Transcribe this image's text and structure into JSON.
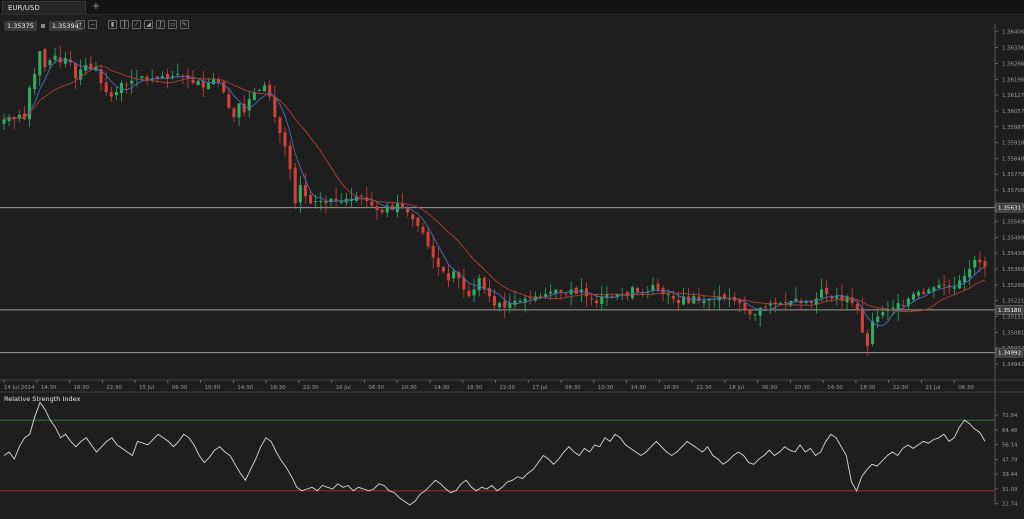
{
  "tab": {
    "symbol": "EUR/USD",
    "add_label": "+"
  },
  "quote": {
    "bid": "1.35375",
    "ask": "1.35394"
  },
  "toolbar": {
    "icons": [
      "zoom-in-icon",
      "zoom-out-icon",
      "bar-chart-icon",
      "candles-icon",
      "line-chart-icon",
      "area-chart-icon",
      "indicators-icon",
      "objects-icon",
      "draw-icon"
    ]
  },
  "colors": {
    "bg": "#1e1e1e",
    "bull": "#2fae62",
    "bear": "#d2413a",
    "ma_fast": "#4a70b8",
    "ma_slow": "#b0403a",
    "hline": "#9a9a9a",
    "rsi_line": "#d8d8d8",
    "rsi_upper": "#2f8f3a",
    "rsi_lower": "#b32a2a"
  },
  "chart_data": {
    "type": "candlestick",
    "instrument": "EUR/USD",
    "ylim": [
      1.3488,
      1.3644
    ],
    "y_ticks": [
      "1.36406",
      "1.36336",
      "1.36266",
      "1.36196",
      "1.36127",
      "1.36057",
      "1.35987",
      "1.35918",
      "1.35848",
      "1.35778",
      "1.35708",
      "1.35638",
      "1.35569",
      "1.35499",
      "1.35430",
      "1.35360",
      "1.35290",
      "1.35221",
      "1.35151",
      "1.35081",
      "1.35012",
      "1.34942"
    ],
    "x_ticks": [
      "14 Jul 2014",
      "14:30",
      "18:30",
      "22:30",
      "15 Jul",
      "06:30",
      "10:30",
      "14:30",
      "18:30",
      "22:30",
      "16 Jul",
      "06:30",
      "10:30",
      "14:30",
      "18:30",
      "22:30",
      "17 Jul",
      "06:30",
      "10:30",
      "14:30",
      "18:30",
      "22:30",
      "18 Jul",
      "06:30",
      "10:30",
      "14:30",
      "18:30",
      "22:30",
      "21 Jul",
      "06:30"
    ],
    "horizontal_lines": [
      "1.35631",
      "1.35180",
      "1.34992"
    ],
    "close_path": [
      1.3602,
      1.3603,
      1.3602,
      1.3604,
      1.3602,
      1.3616,
      1.3622,
      1.3632,
      1.3625,
      1.3628,
      1.363,
      1.3627,
      1.3629,
      1.3627,
      1.362,
      1.3624,
      1.3626,
      1.3624,
      1.3625,
      1.3618,
      1.3614,
      1.3612,
      1.3614,
      1.3618,
      1.3617,
      1.3619,
      1.362,
      1.3621,
      1.3619,
      1.362,
      1.362,
      1.3621,
      1.362,
      1.3621,
      1.3622,
      1.3621,
      1.362,
      1.3618,
      1.3619,
      1.3616,
      1.3618,
      1.362,
      1.3618,
      1.3614,
      1.3607,
      1.3603,
      1.3609,
      1.3605,
      1.3611,
      1.3614,
      1.3615,
      1.3617,
      1.3612,
      1.3603,
      1.3596,
      1.359,
      1.358,
      1.3565,
      1.3573,
      1.3568,
      1.3565,
      1.3566,
      1.3566,
      1.3565,
      1.3567,
      1.3566,
      1.3566,
      1.3567,
      1.3567,
      1.3568,
      1.3568,
      1.3566,
      1.3564,
      1.3562,
      1.3561,
      1.3564,
      1.3562,
      1.3565,
      1.3563,
      1.3561,
      1.3558,
      1.3555,
      1.3552,
      1.3546,
      1.3541,
      1.3537,
      1.3535,
      1.3531,
      1.3535,
      1.3532,
      1.3527,
      1.3524,
      1.3527,
      1.3532,
      1.3527,
      1.3524,
      1.352,
      1.3521,
      1.3519,
      1.3521,
      1.3522,
      1.3522,
      1.3523,
      1.3523,
      1.3524,
      1.3524,
      1.3525,
      1.3526,
      1.3527,
      1.3526,
      1.3525,
      1.3527,
      1.3525,
      1.3527,
      1.3524,
      1.3523,
      1.3521,
      1.3524,
      1.3525,
      1.3524,
      1.3525,
      1.3525,
      1.3524,
      1.3528,
      1.3526,
      1.3525,
      1.3526,
      1.3529,
      1.3527,
      1.3525,
      1.3525,
      1.3523,
      1.3521,
      1.3524,
      1.3521,
      1.3524,
      1.3522,
      1.3522,
      1.3523,
      1.3523,
      1.3524,
      1.3523,
      1.3523,
      1.3522,
      1.3521,
      1.3518,
      1.3516,
      1.3516,
      1.3519,
      1.3519,
      1.3521,
      1.3521,
      1.3521,
      1.3521,
      1.3522,
      1.3523,
      1.3521,
      1.3522,
      1.3521,
      1.3523,
      1.3527,
      1.3525,
      1.3523,
      1.3524,
      1.3522,
      1.3524,
      1.3521,
      1.3518,
      1.3508,
      1.3502,
      1.3513,
      1.3515,
      1.3517,
      1.3518,
      1.3519,
      1.3521,
      1.352,
      1.3523,
      1.3525,
      1.3526,
      1.3525,
      1.3527,
      1.3528,
      1.3529,
      1.3529,
      1.3528,
      1.3528,
      1.3531,
      1.3533,
      1.3536,
      1.354,
      1.3539,
      1.3537
    ],
    "series": [
      {
        "name": "",
        "type": "moving_average_fast"
      },
      {
        "name": "",
        "type": "moving_average_slow"
      }
    ],
    "indicator": {
      "title": "Relative Strength Index",
      "ylim": [
        18,
        82
      ],
      "y_ticks": [
        "72.84",
        "64.48",
        "56.14",
        "47.79",
        "39.44",
        "31.09",
        "22.74"
      ],
      "levels": [
        70,
        30
      ],
      "values": [
        50,
        52,
        48,
        55,
        60,
        62,
        72,
        80,
        76,
        70,
        66,
        60,
        62,
        58,
        55,
        58,
        60,
        56,
        52,
        55,
        58,
        60,
        56,
        54,
        52,
        50,
        58,
        57,
        56,
        59,
        62,
        60,
        58,
        55,
        58,
        62,
        60,
        56,
        50,
        46,
        49,
        53,
        55,
        52,
        50,
        45,
        40,
        36,
        42,
        48,
        55,
        60,
        58,
        52,
        47,
        43,
        38,
        32,
        30,
        31,
        32,
        30,
        33,
        32,
        31,
        34,
        32,
        33,
        30,
        32,
        31,
        30,
        31,
        34,
        33,
        30,
        29,
        26,
        24,
        22,
        24,
        28,
        30,
        33,
        36,
        34,
        31,
        29,
        30,
        34,
        36,
        32,
        30,
        32,
        31,
        33,
        30,
        32,
        35,
        36,
        38,
        37,
        40,
        42,
        46,
        50,
        48,
        45,
        48,
        52,
        55,
        52,
        50,
        54,
        52,
        56,
        55,
        60,
        58,
        62,
        60,
        56,
        54,
        52,
        50,
        52,
        55,
        58,
        55,
        52,
        50,
        52,
        55,
        58,
        56,
        54,
        52,
        55,
        50,
        48,
        45,
        47,
        50,
        52,
        50,
        46,
        45,
        48,
        50,
        53,
        50,
        52,
        55,
        53,
        52,
        56,
        52,
        54,
        50,
        52,
        58,
        62,
        60,
        55,
        50,
        35,
        30,
        38,
        42,
        45,
        44,
        47,
        50,
        52,
        50,
        54,
        56,
        54,
        56,
        58,
        57,
        59,
        60,
        62,
        58,
        60,
        66,
        70,
        68,
        65,
        63,
        58
      ]
    }
  }
}
